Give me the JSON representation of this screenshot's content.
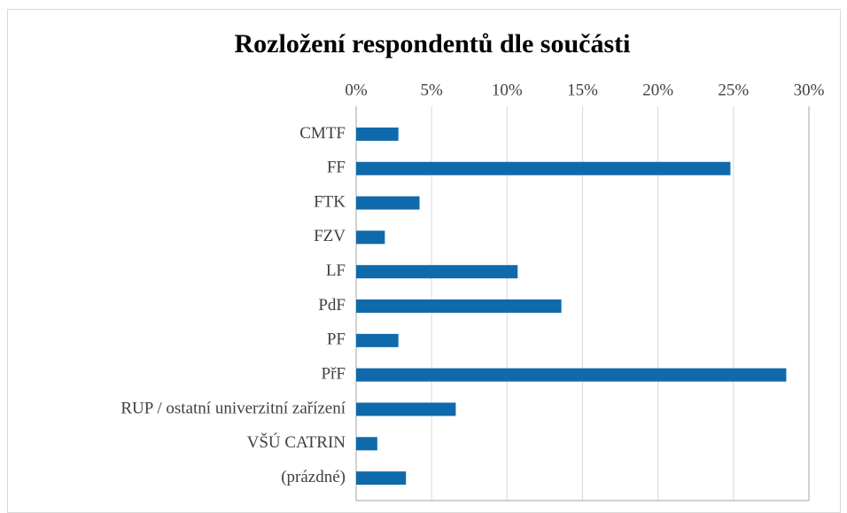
{
  "chart_data": {
    "type": "bar",
    "orientation": "horizontal",
    "title": "Rozložení respondentů dle součásti",
    "categories": [
      "CMTF",
      "FF",
      "FTK",
      "FZV",
      "LF",
      "PdF",
      "PF",
      "PřF",
      "RUP / ostatní univerzitní zařízení",
      "VŠÚ CATRIN",
      "(prázdné)"
    ],
    "values": [
      2.8,
      24.8,
      4.2,
      1.9,
      10.7,
      13.6,
      2.8,
      28.5,
      6.6,
      1.4,
      3.3
    ],
    "color": "#0f6aab",
    "xlim": [
      0,
      30
    ],
    "xticks": [
      {
        "value": 0,
        "label": "0%"
      },
      {
        "value": 5,
        "label": "5%"
      },
      {
        "value": 10,
        "label": "10%"
      },
      {
        "value": 15,
        "label": "15%"
      },
      {
        "value": 20,
        "label": "20%"
      },
      {
        "value": 25,
        "label": "25%"
      },
      {
        "value": 30,
        "label": "30%"
      }
    ],
    "grid": true
  }
}
